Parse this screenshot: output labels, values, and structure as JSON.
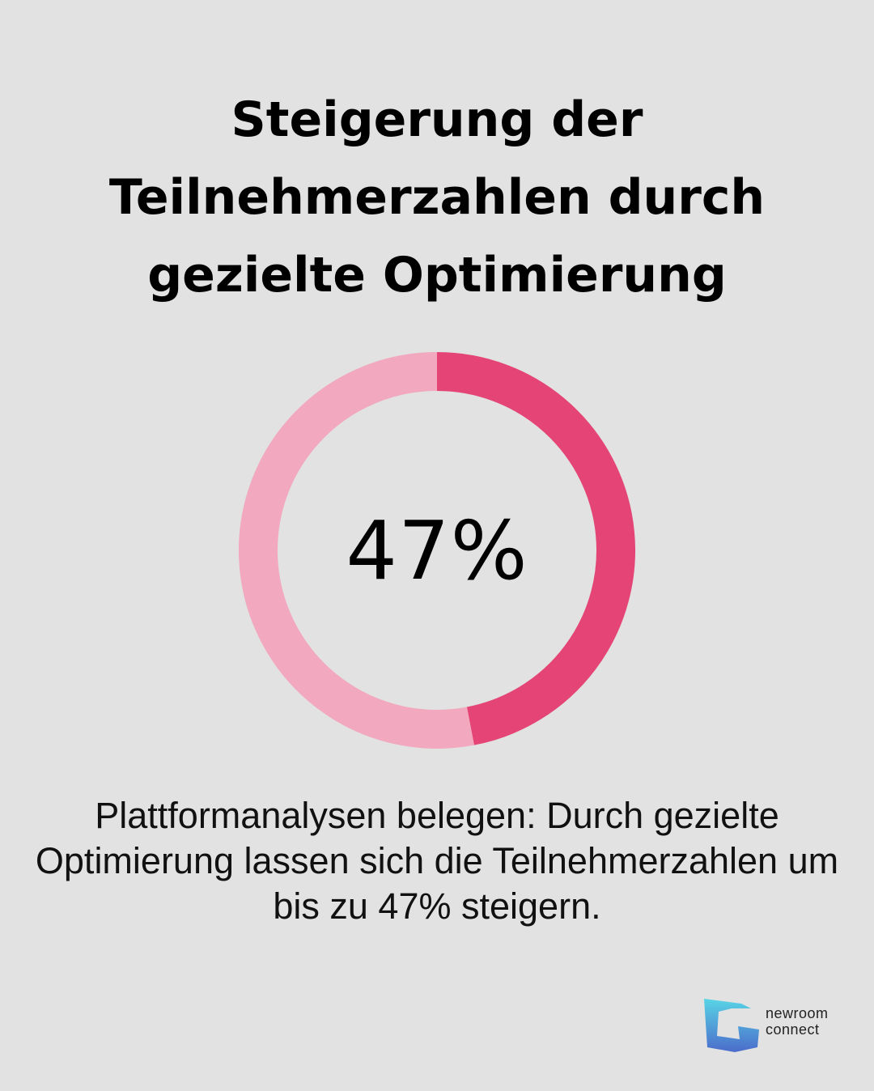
{
  "title": "Steigerung der Teilnehmerzahlen durch gezielte Optimierung",
  "chart_data": {
    "type": "pie",
    "style": "donut",
    "values": [
      47,
      53
    ],
    "center_label": "47%",
    "colors": {
      "highlight": "#e44576",
      "remainder": "#f2a8bf"
    }
  },
  "description": "Plattformanalysen belegen: Durch gezielte Optimierung lassen sich die Teilnehmerzahlen um bis zu 47% steigern.",
  "logo": {
    "line1": "newroom",
    "line2": "connect"
  },
  "colors": {
    "background": "#e1e2e1",
    "logo_blue": "#3a6fd1",
    "logo_cyan": "#49d3e6"
  }
}
